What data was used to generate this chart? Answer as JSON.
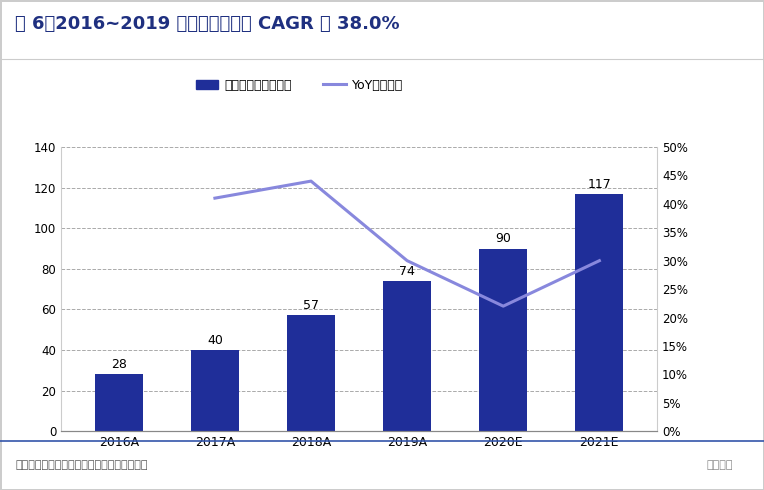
{
  "title": "图 6：2016~2019 年，卡萨帝收入 CAGR 为 38.0%",
  "categories": [
    "2016A",
    "2017A",
    "2018A",
    "2019A",
    "2020E",
    "2021E"
  ],
  "bar_values": [
    28,
    40,
    57,
    74,
    90,
    117
  ],
  "bar_color": "#1f2e99",
  "yoy_values": [
    null,
    0.41,
    0.44,
    0.3,
    0.22,
    0.3
  ],
  "line_color": "#8888dd",
  "left_ylim": [
    0,
    140
  ],
  "left_yticks": [
    0,
    20,
    40,
    60,
    80,
    100,
    120,
    140
  ],
  "right_ylim": [
    0,
    0.5
  ],
  "right_yticks": [
    0,
    0.05,
    0.1,
    0.15,
    0.2,
    0.25,
    0.3,
    0.35,
    0.4,
    0.45,
    0.5
  ],
  "legend_bar_label": "卡萨帝收入（亿元）",
  "legend_line_label": "YoY（右轴）",
  "footer": "资料来源：海尔智家公告，安信证券研究中心",
  "background_color": "#ffffff",
  "title_color": "#1f3080",
  "title_fontsize": 13,
  "bar_label_fontsize": 9,
  "grid_color": "#aaaaaa",
  "watermark": "家电先生"
}
